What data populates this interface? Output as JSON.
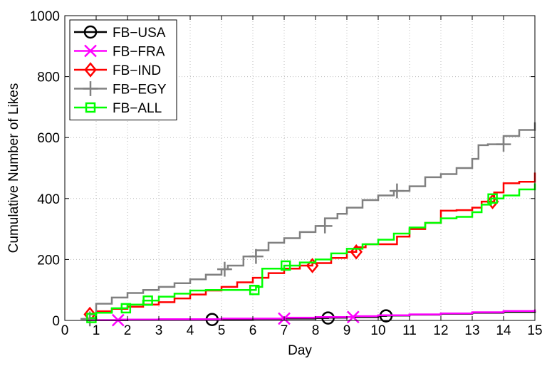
{
  "chart_data": {
    "type": "line",
    "title": "",
    "xlabel": "Day",
    "ylabel": "Cumulative Number of Likes",
    "xlim": [
      0,
      15
    ],
    "ylim": [
      0,
      1000
    ],
    "xticks": [
      "0",
      "1",
      "2",
      "3",
      "4",
      "5",
      "6",
      "7",
      "8",
      "9",
      "10",
      "11",
      "12",
      "13",
      "14",
      "15"
    ],
    "yticks": [
      "0",
      "200",
      "400",
      "600",
      "800",
      "1000"
    ],
    "grid": true,
    "legend_position": "top-left",
    "series": [
      {
        "name": "FB−USA",
        "color": "#000000",
        "marker": "circle",
        "x": [
          0.7,
          2,
          3,
          4,
          4.7,
          5,
          6,
          7,
          8,
          8.4,
          9,
          10,
          10.25,
          11,
          12,
          13,
          14,
          15
        ],
        "y": [
          1,
          2,
          2,
          3,
          4,
          4,
          5,
          6,
          8,
          9,
          11,
          15,
          16,
          19,
          22,
          25,
          28,
          31
        ],
        "markers_x": [
          4.7,
          8.4,
          10.25
        ]
      },
      {
        "name": "FB−FRA",
        "color": "#ff00ff",
        "marker": "x",
        "x": [
          0.7,
          1.7,
          3,
          5,
          7,
          8,
          9.2,
          10,
          11,
          12,
          13,
          14,
          15
        ],
        "y": [
          1,
          3,
          4,
          6,
          9,
          11,
          14,
          17,
          20,
          23,
          27,
          31,
          36
        ],
        "markers_x": [
          1.7,
          7.0,
          9.2
        ]
      },
      {
        "name": "FB−IND",
        "color": "#ff0000",
        "marker": "diamond",
        "x": [
          0.8,
          1,
          1.5,
          2,
          2.5,
          3,
          3.5,
          4,
          4.5,
          5,
          5.5,
          6,
          6.5,
          7,
          7.5,
          7.9,
          8.5,
          9,
          9.3,
          9.6,
          10.3,
          10.6,
          11,
          11.5,
          12,
          12.5,
          13,
          13.3,
          13.7,
          14,
          14.5,
          15
        ],
        "y": [
          20,
          30,
          38,
          45,
          52,
          60,
          72,
          85,
          98,
          110,
          125,
          140,
          155,
          170,
          180,
          188,
          205,
          225,
          240,
          250,
          250,
          275,
          300,
          320,
          360,
          362,
          370,
          390,
          420,
          450,
          455,
          485
        ],
        "markers_x": [
          0.8,
          7.9,
          9.3,
          13.65
        ]
      },
      {
        "name": "FB−EGY",
        "color": "#808080",
        "marker": "plus",
        "x": [
          0.5,
          0.8,
          1,
          1.5,
          2,
          2.5,
          3,
          3.5,
          4,
          4.5,
          5,
          5.2,
          5.7,
          6.1,
          6.5,
          7,
          7.5,
          8,
          8.3,
          8.7,
          9,
          9.5,
          10,
          10.5,
          11,
          11.5,
          12,
          12.5,
          13,
          13.2,
          13.5,
          14,
          14.5,
          15
        ],
        "y": [
          5,
          20,
          55,
          75,
          90,
          100,
          110,
          122,
          135,
          150,
          168,
          180,
          210,
          230,
          255,
          270,
          290,
          310,
          335,
          350,
          370,
          395,
          410,
          425,
          440,
          470,
          480,
          500,
          530,
          575,
          578,
          605,
          625,
          650
        ],
        "markers_x": [
          0.8,
          5.1,
          6.1,
          8.3,
          10.6,
          14.0
        ]
      },
      {
        "name": "FB−ALL",
        "color": "#00ff00",
        "marker": "square",
        "x": [
          0.8,
          1,
          1.5,
          2,
          2.5,
          3,
          3.5,
          4,
          4.5,
          5,
          5.5,
          6.1,
          6.3,
          7,
          7.5,
          8,
          8.5,
          9,
          9.5,
          10,
          10.5,
          11,
          11.5,
          12,
          12.5,
          13,
          13.3,
          13.6,
          14,
          14.5,
          15
        ],
        "y": [
          8,
          25,
          40,
          52,
          65,
          78,
          88,
          98,
          100,
          100,
          100,
          110,
          170,
          180,
          190,
          200,
          220,
          235,
          250,
          265,
          285,
          305,
          320,
          335,
          340,
          355,
          380,
          400,
          410,
          430,
          450
        ],
        "markers_x": [
          0.85,
          1.95,
          2.65,
          6.05,
          7.05,
          13.65
        ]
      }
    ]
  }
}
